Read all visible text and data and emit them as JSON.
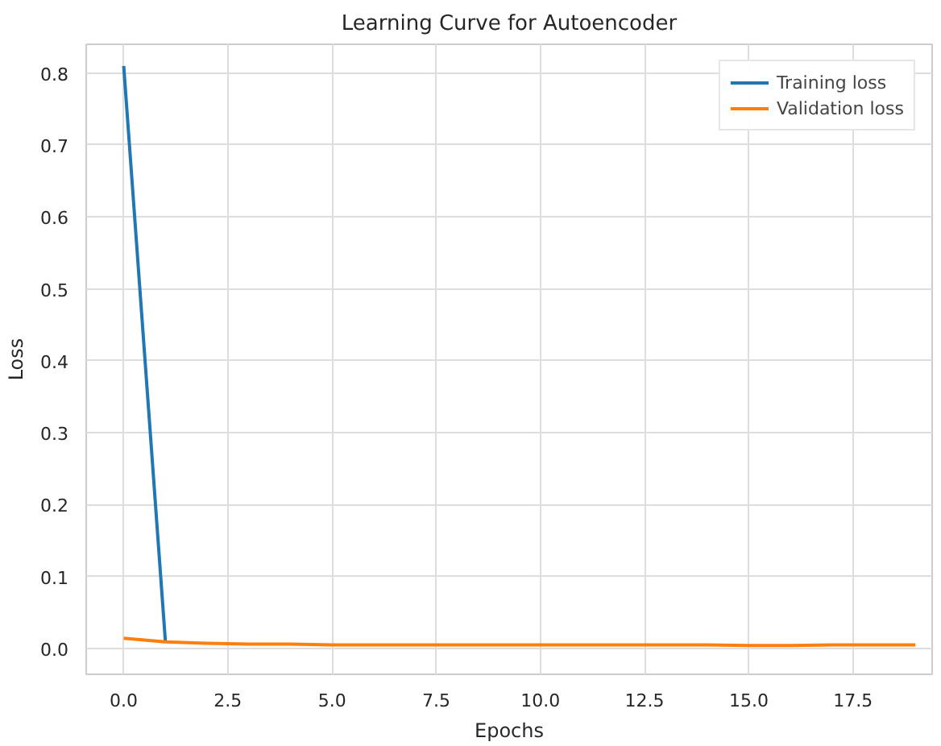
{
  "chart_data": {
    "type": "line",
    "title": "Learning Curve for Autoencoder",
    "xlabel": "Epochs",
    "ylabel": "Loss",
    "x": [
      0,
      1,
      2,
      3,
      4,
      5,
      6,
      7,
      8,
      9,
      10,
      11,
      12,
      13,
      14,
      15,
      16,
      17,
      18,
      19
    ],
    "series": [
      {
        "name": "Training loss",
        "color": "#1f77b4",
        "values": [
          0.81,
          0.01,
          null,
          null,
          null,
          null,
          null,
          null,
          null,
          null,
          null,
          null,
          null,
          null,
          null,
          null,
          null,
          null,
          null,
          null
        ]
      },
      {
        "name": "Validation loss",
        "color": "#ff7f0e",
        "values": [
          0.014,
          0.009,
          0.007,
          0.006,
          0.006,
          0.005,
          0.005,
          0.005,
          0.005,
          0.005,
          0.005,
          0.005,
          0.005,
          0.005,
          0.005,
          0.004,
          0.004,
          0.005,
          0.005,
          0.005
        ]
      }
    ],
    "xlim": [
      -0.9,
      19.4
    ],
    "ylim": [
      -0.036,
      0.84
    ],
    "xticks": [
      {
        "value": 0,
        "label": "0.0"
      },
      {
        "value": 2.5,
        "label": "2.5"
      },
      {
        "value": 5,
        "label": "5.0"
      },
      {
        "value": 7.5,
        "label": "7.5"
      },
      {
        "value": 10,
        "label": "10.0"
      },
      {
        "value": 12.5,
        "label": "12.5"
      },
      {
        "value": 15,
        "label": "15.0"
      },
      {
        "value": 17.5,
        "label": "17.5"
      }
    ],
    "yticks": [
      {
        "value": 0,
        "label": "0.0"
      },
      {
        "value": 0.1,
        "label": "0.1"
      },
      {
        "value": 0.2,
        "label": "0.2"
      },
      {
        "value": 0.3,
        "label": "0.3"
      },
      {
        "value": 0.4,
        "label": "0.4"
      },
      {
        "value": 0.5,
        "label": "0.5"
      },
      {
        "value": 0.6,
        "label": "0.6"
      },
      {
        "value": 0.7,
        "label": "0.7"
      },
      {
        "value": 0.8,
        "label": "0.8"
      }
    ],
    "grid": true,
    "legend": "top right"
  }
}
